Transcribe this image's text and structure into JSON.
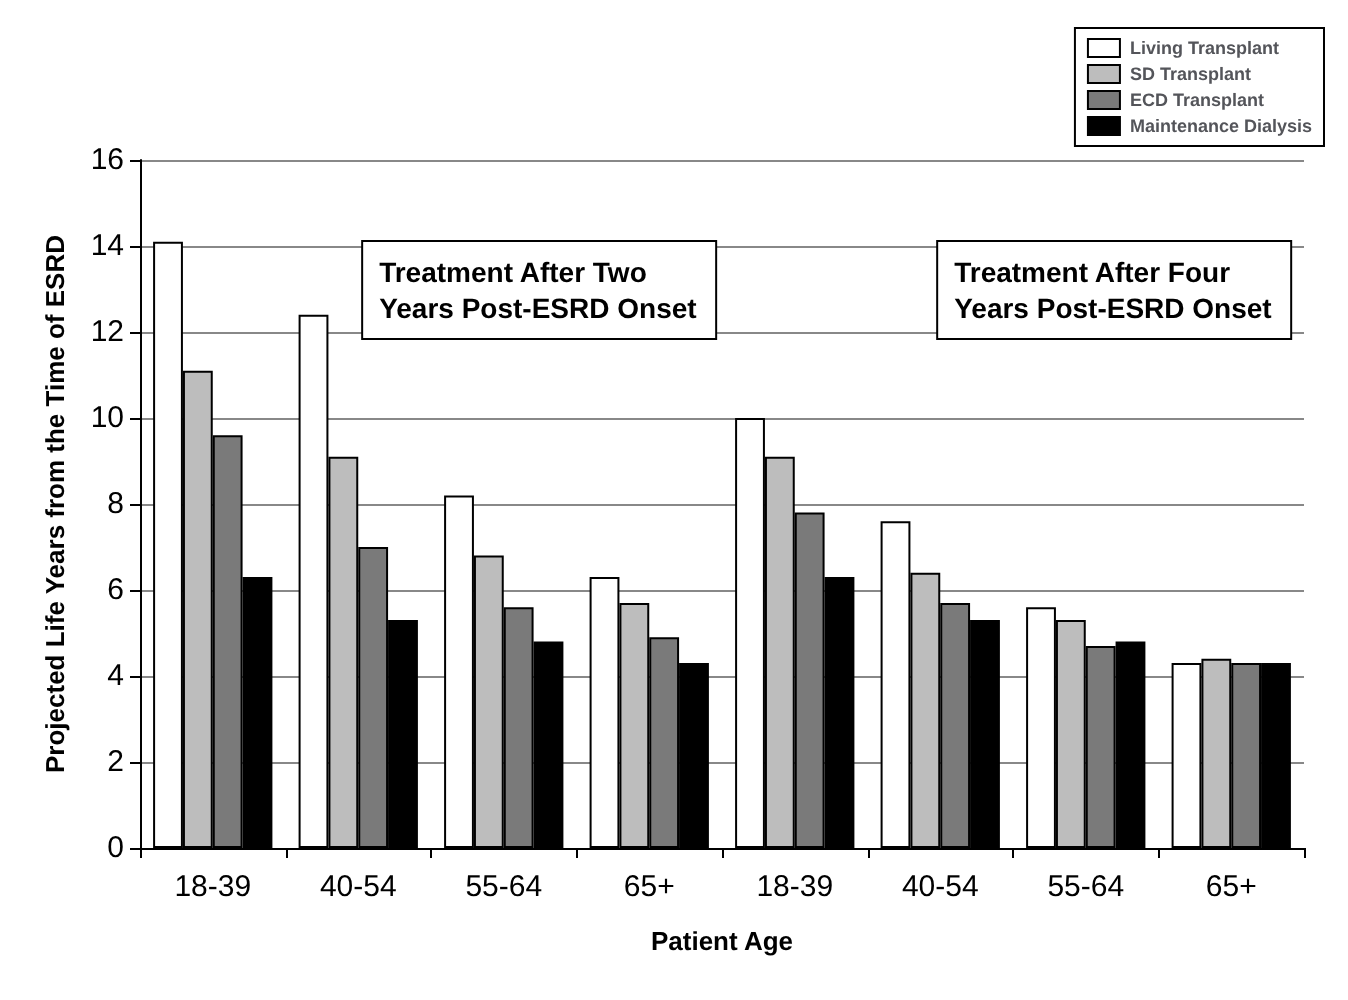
{
  "chart_data": {
    "type": "bar",
    "xlabel": "Patient Age",
    "ylabel": "Projected Life Years from the Time of ESRD",
    "categories": [
      "18-39",
      "40-54",
      "55-64",
      "65+",
      "18-39",
      "40-54",
      "55-64",
      "65+"
    ],
    "series": [
      {
        "name": "Living Transplant",
        "color": "#ffffff",
        "values": [
          14.1,
          12.4,
          8.2,
          6.3,
          10.0,
          7.6,
          5.6,
          4.3
        ]
      },
      {
        "name": "SD Transplant",
        "color": "#bdbdbd",
        "values": [
          11.1,
          9.1,
          6.8,
          5.7,
          9.1,
          6.4,
          5.3,
          4.4
        ]
      },
      {
        "name": "ECD Transplant",
        "color": "#7a7a7a",
        "values": [
          9.6,
          7.0,
          5.6,
          4.9,
          7.8,
          5.7,
          4.7,
          4.3
        ]
      },
      {
        "name": "Maintenance Dialysis",
        "color": "#000000",
        "values": [
          6.3,
          5.3,
          4.8,
          4.3,
          6.3,
          5.3,
          4.8,
          4.3
        ]
      }
    ],
    "ylim": [
      0,
      16
    ],
    "yticks": [
      0,
      2,
      4,
      6,
      8,
      10,
      12,
      14,
      16
    ],
    "grid": "y",
    "legend": "top right",
    "annotations": [
      "Treatment After Two Years Post-ESRD Onset",
      "Treatment After Four Years Post-ESRD Onset"
    ]
  }
}
